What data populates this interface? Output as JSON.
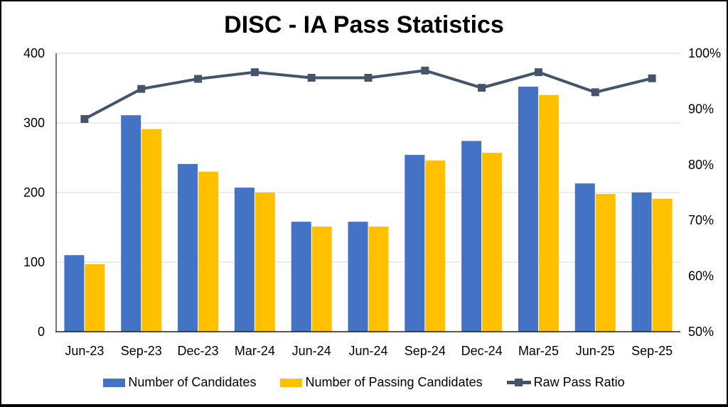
{
  "chart_data": {
    "type": "bar",
    "title": "DISC - IA Pass Statistics",
    "categories": [
      "Jun-23",
      "Sep-23",
      "Dec-23",
      "Mar-24",
      "Jun-24",
      "Jun-24",
      "Sep-24",
      "Dec-24",
      "Mar-25",
      "Jun-25",
      "Sep-25"
    ],
    "series": [
      {
        "name": "Number of Candidates",
        "type": "bar",
        "axis": "left",
        "color": "#4472C4",
        "values": [
          110,
          311,
          241,
          207,
          158,
          158,
          254,
          274,
          352,
          213,
          200
        ]
      },
      {
        "name": "Number of Passing Candidates",
        "type": "bar",
        "axis": "left",
        "color": "#FFC000",
        "values": [
          97,
          291,
          230,
          200,
          151,
          151,
          246,
          257,
          340,
          198,
          191
        ]
      },
      {
        "name": "Raw Pass Ratio",
        "type": "line",
        "axis": "right",
        "color": "#44546A",
        "unit": "%",
        "values": [
          88.2,
          93.6,
          95.4,
          96.6,
          95.6,
          95.6,
          96.9,
          93.8,
          96.6,
          93.0,
          95.5
        ]
      }
    ],
    "left_axis": {
      "min": 0,
      "max": 400,
      "ticks": [
        0,
        100,
        200,
        300,
        400
      ]
    },
    "right_axis": {
      "min": 50,
      "max": 100,
      "ticks": [
        50,
        60,
        70,
        80,
        90,
        100
      ],
      "suffix": "%"
    },
    "grid": true,
    "legend_position": "bottom",
    "colors": {
      "grid": "#D9D9D9",
      "axis": "#1F1F1F",
      "text": "#000000",
      "background": "#FFFFFF"
    }
  }
}
